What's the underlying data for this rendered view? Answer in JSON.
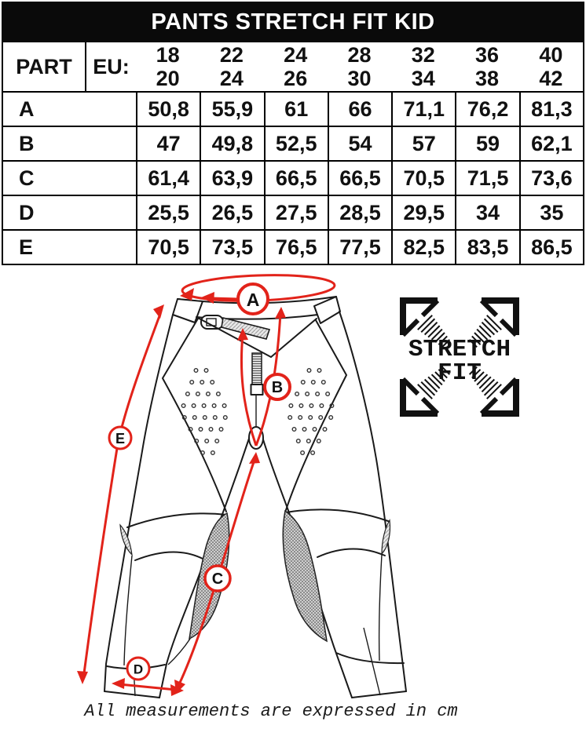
{
  "title": "PANTS STRETCH FIT KID",
  "table": {
    "part_label": "PART",
    "eu_label": "EU:",
    "sizes": [
      [
        "18",
        "20"
      ],
      [
        "22",
        "24"
      ],
      [
        "24",
        "26"
      ],
      [
        "28",
        "30"
      ],
      [
        "32",
        "34"
      ],
      [
        "36",
        "38"
      ],
      [
        "40",
        "42"
      ]
    ],
    "rows": [
      {
        "part": "A",
        "values": [
          "50,8",
          "55,9",
          "61",
          "66",
          "71,1",
          "76,2",
          "81,3"
        ]
      },
      {
        "part": "B",
        "values": [
          "47",
          "49,8",
          "52,5",
          "54",
          "57",
          "59",
          "62,1"
        ]
      },
      {
        "part": "C",
        "values": [
          "61,4",
          "63,9",
          "66,5",
          "66,5",
          "70,5",
          "71,5",
          "73,6"
        ]
      },
      {
        "part": "D",
        "values": [
          "25,5",
          "26,5",
          "27,5",
          "28,5",
          "29,5",
          "34",
          "35"
        ]
      },
      {
        "part": "E",
        "values": [
          "70,5",
          "73,5",
          "76,5",
          "77,5",
          "82,5",
          "83,5",
          "86,5"
        ]
      }
    ]
  },
  "diagram": {
    "labels": {
      "a": "A",
      "b": "B",
      "c": "C",
      "d": "D",
      "e": "E"
    },
    "logo_line1": "STRETCH",
    "logo_line2": "FIT",
    "footer_note": "All measurements are expressed in cm",
    "accent_red": "#e2231a",
    "line_black": "#1a1a1a"
  }
}
